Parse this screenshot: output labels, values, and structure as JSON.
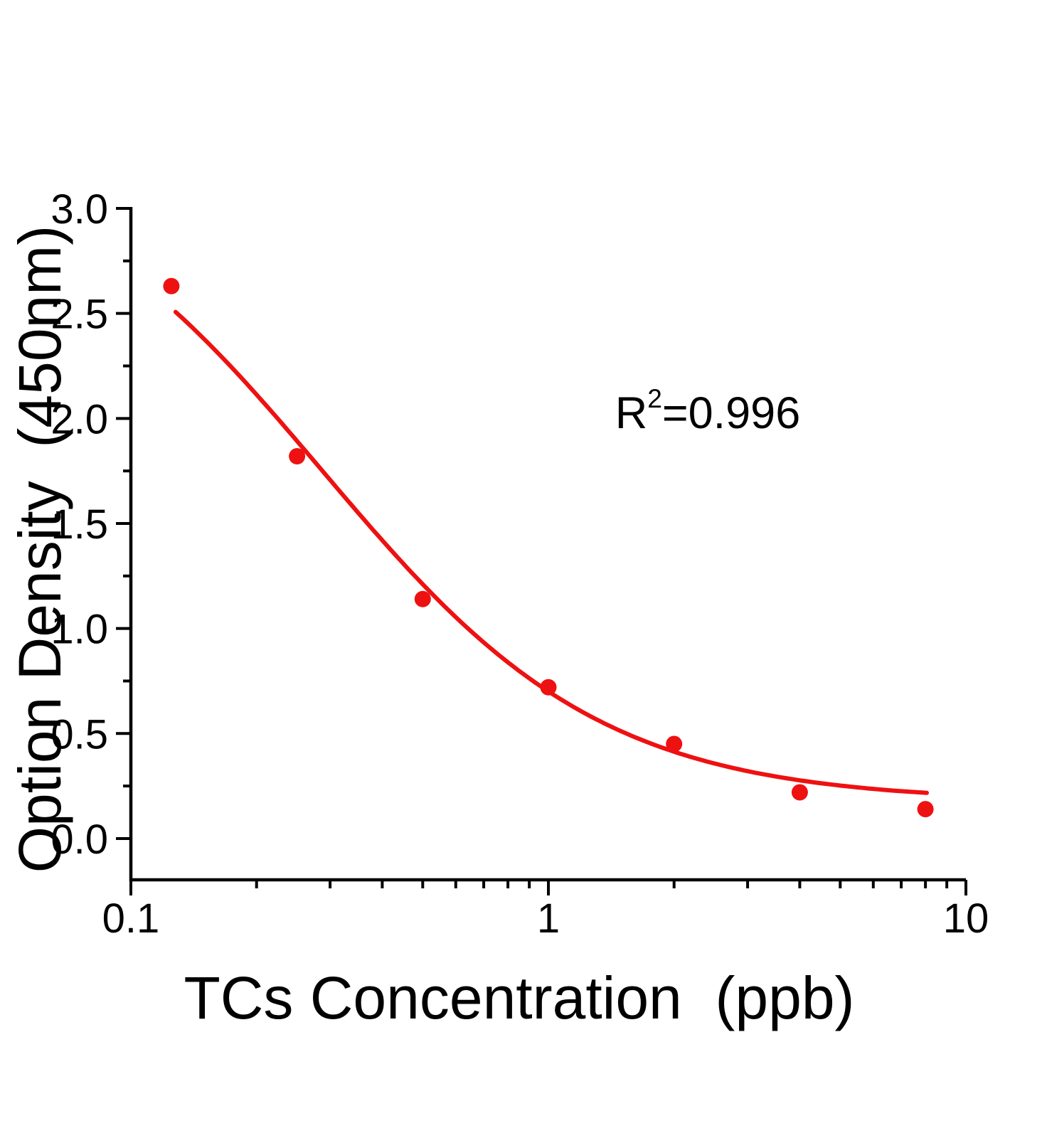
{
  "page": {
    "background": "#ffffff"
  },
  "chart_data": {
    "type": "scatter",
    "title": "",
    "xlabel": "TCs Concentration  (ppb)",
    "ylabel": "Option Density  (450nm)",
    "x": [
      0.125,
      0.25,
      0.5,
      1,
      2,
      4,
      8
    ],
    "y": [
      2.63,
      1.82,
      1.14,
      0.72,
      0.45,
      0.22,
      0.14
    ],
    "x_axis": {
      "scale": "log",
      "min": 0.1,
      "max": 10,
      "major_ticks": [
        0.1,
        1,
        10
      ],
      "major_tick_labels": [
        "0.1",
        "1",
        "10"
      ],
      "minor_ticks": [
        0.2,
        0.3,
        0.4,
        0.5,
        0.6,
        0.7,
        0.8,
        0.9,
        2,
        3,
        4,
        5,
        6,
        7,
        8,
        9
      ]
    },
    "y_axis": {
      "scale": "linear",
      "min": -0.2,
      "max": 3.0,
      "major_ticks": [
        0.0,
        0.5,
        1.0,
        1.5,
        2.0,
        2.5,
        3.0
      ],
      "major_tick_labels": [
        "0.0",
        "0.5",
        "1.0",
        "1.5",
        "2.0",
        "2.5",
        "3.0"
      ],
      "minor_ticks": [
        0.25,
        0.75,
        1.25,
        1.75,
        2.25,
        2.75
      ]
    },
    "annotation": {
      "base": "R",
      "exponent": "2",
      "value": "=0.996",
      "r_squared": 0.996
    },
    "fit": {
      "model": "4PL",
      "a": 3.33,
      "b": 1.29,
      "c": 0.287,
      "d": 0.175,
      "x_start": 0.128,
      "x_end": 8.06
    },
    "colors": {
      "series": "#ee1111",
      "axis": "#000000"
    },
    "grid": false,
    "legend": "none"
  }
}
